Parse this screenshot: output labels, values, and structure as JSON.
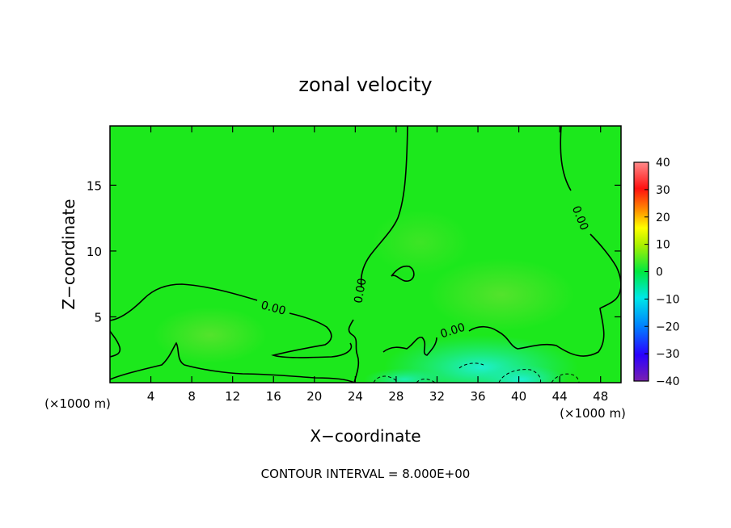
{
  "chart_data": {
    "type": "heatmap",
    "title": "zonal velocity",
    "xlabel": "X−coordinate",
    "ylabel": "Z−coordinate",
    "x_unit_left": "(×1000 m)",
    "x_unit_right": "(×1000 m)",
    "xlim": [
      0,
      50
    ],
    "ylim": [
      0,
      19.5
    ],
    "x_ticks": [
      4,
      8,
      12,
      16,
      20,
      24,
      28,
      32,
      36,
      40,
      44,
      48
    ],
    "x_tick_labels": [
      "4",
      "8",
      "12",
      "16",
      "20",
      "24",
      "28",
      "32",
      "36",
      "40",
      "44",
      "48"
    ],
    "y_ticks": [
      5,
      10,
      15
    ],
    "y_tick_labels": [
      "5",
      "10",
      "15"
    ],
    "colorbar": {
      "range": [
        -40,
        40
      ],
      "ticks": [
        40,
        30,
        20,
        10,
        0,
        -10,
        -20,
        -30,
        -40
      ],
      "tick_labels": [
        "40",
        "30",
        "20",
        "10",
        "0",
        "−10",
        "−20",
        "−30",
        "−40"
      ]
    },
    "contour_labels": [
      "0.00",
      "0.00",
      "0.00",
      "0.00"
    ],
    "contour_interval_text": "CONTOUR INTERVAL = 8.000E+00",
    "colors": {
      "field_main": "#1ce81c",
      "field_light": "#3ee63a",
      "field_negative": "#18e8a0",
      "field_cyan": "#1ef0d8"
    }
  }
}
